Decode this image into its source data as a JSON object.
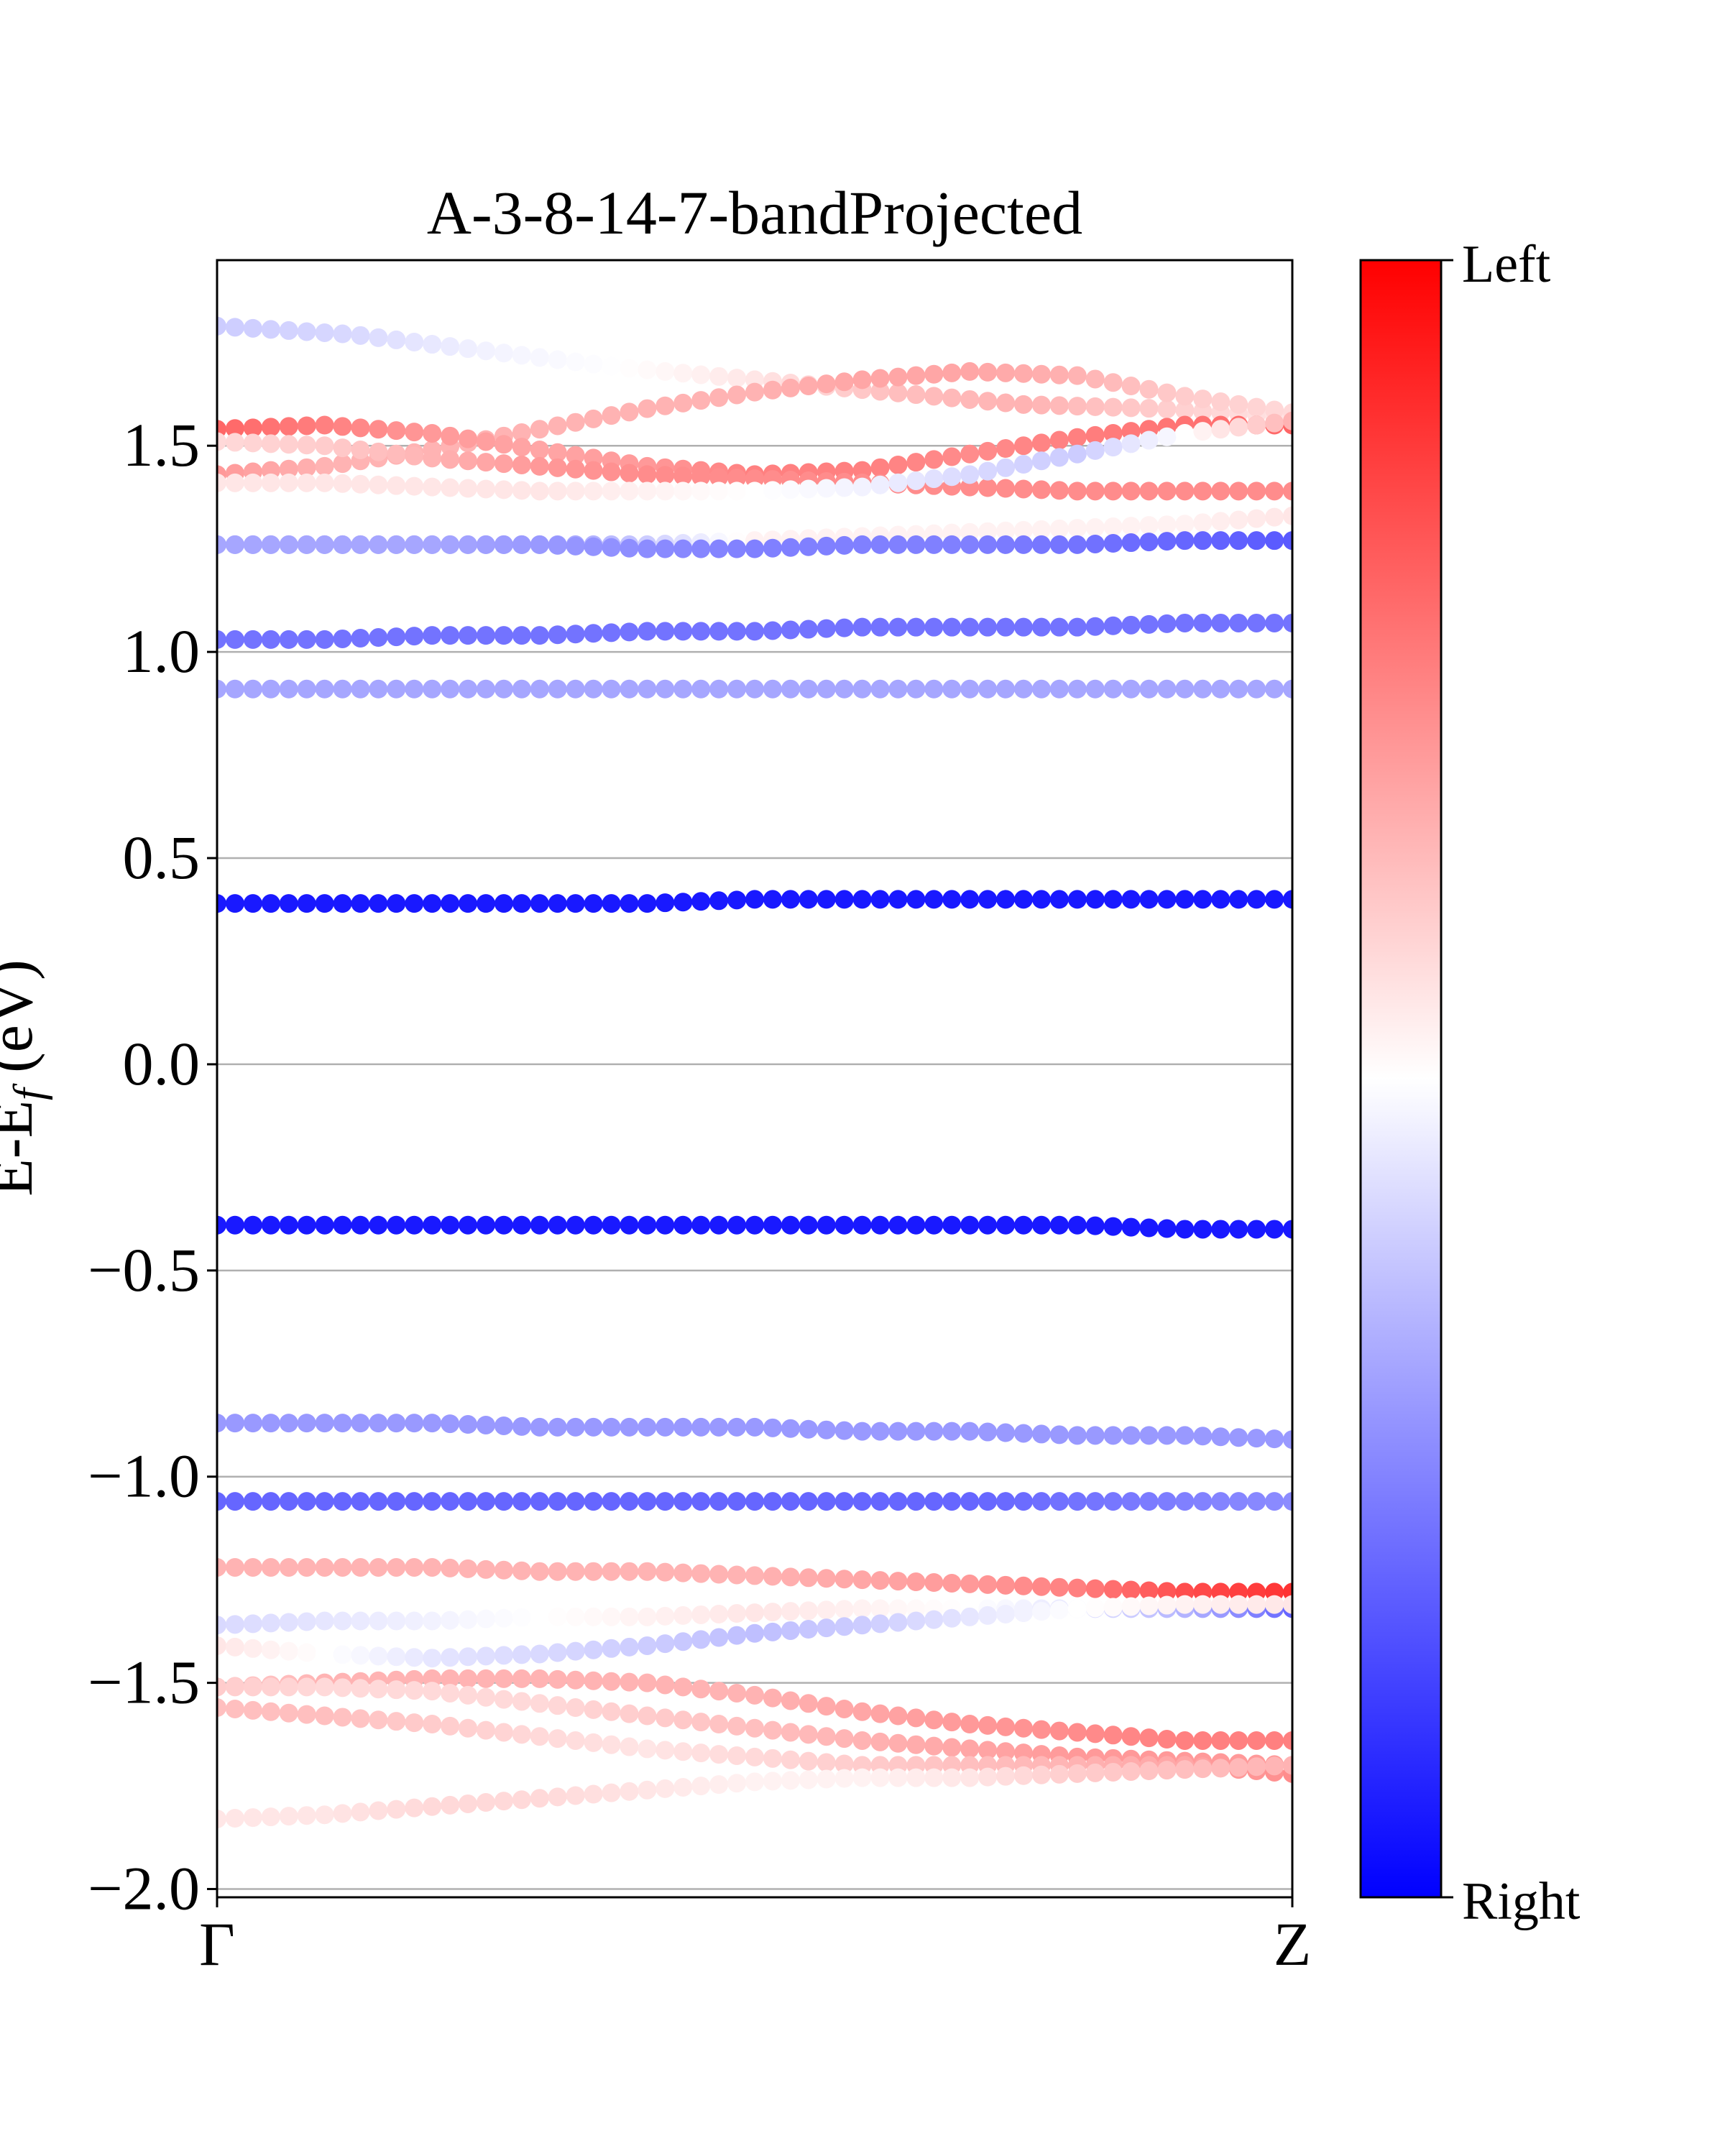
{
  "chart_data": {
    "type": "scatter",
    "title": "A-3-8-14-7-bandProjected",
    "ylabel": "E-E",
    "ylabel_sub": "f",
    "ylabel_unit": " (eV)",
    "xlim": [
      0,
      1
    ],
    "ylim": [
      -2.02,
      1.95
    ],
    "x_ticks": [
      {
        "value": 0,
        "label": "Γ"
      },
      {
        "value": 1,
        "label": "Z"
      }
    ],
    "y_ticks": [
      {
        "value": -2.0,
        "label": "−2.0"
      },
      {
        "value": -1.5,
        "label": "−1.5"
      },
      {
        "value": -1.0,
        "label": "−1.0"
      },
      {
        "value": -0.5,
        "label": "−0.5"
      },
      {
        "value": 0.0,
        "label": "0.0"
      },
      {
        "value": 0.5,
        "label": "0.5"
      },
      {
        "value": 1.0,
        "label": "1.0"
      },
      {
        "value": 1.5,
        "label": "1.5"
      }
    ],
    "grid": "horizontal",
    "colorbar": {
      "top_label": "Left",
      "bottom_label": "Right",
      "colors": [
        "#ff0000",
        "#ffffff",
        "#0000ff"
      ]
    },
    "k_points_per_band": 61,
    "projection_scale": "-1 = Right (blue), +1 = Left (red)",
    "bands": [
      {
        "energy": [
          1.79,
          1.77,
          1.73,
          1.69,
          1.66,
          1.63,
          1.6,
          1.59,
          1.57
        ],
        "projection": [
          -0.2,
          -0.15,
          -0.05,
          0.0,
          0.1,
          0.25,
          0.3,
          0.2,
          0.1
        ]
      },
      {
        "energy": [
          1.43,
          1.45,
          1.49,
          1.54,
          1.59,
          1.63,
          1.66,
          1.68,
          1.67,
          1.62,
          1.58
        ],
        "projection": [
          0.4,
          0.3,
          0.3,
          0.3,
          0.3,
          0.3,
          0.35,
          0.35,
          0.3,
          0.2,
          0.15
        ]
      },
      {
        "energy": [
          1.54,
          1.55,
          1.53,
          1.49,
          1.45,
          1.43,
          1.44,
          1.48,
          1.52,
          1.55,
          1.55
        ],
        "projection": [
          0.6,
          0.5,
          0.4,
          0.35,
          0.4,
          0.5,
          0.5,
          0.45,
          0.5,
          0.55,
          0.6
        ]
      },
      {
        "energy": [
          1.51,
          1.5,
          1.47,
          1.45,
          1.43,
          1.42,
          1.41,
          1.4,
          1.39,
          1.39,
          1.39
        ],
        "projection": [
          0.15,
          0.2,
          0.3,
          0.4,
          0.45,
          0.45,
          0.45,
          0.45,
          0.45,
          0.45,
          0.45
        ]
      },
      {
        "energy": [
          1.41,
          1.41,
          1.4,
          1.39,
          1.39,
          1.39,
          1.4,
          1.43,
          1.48,
          1.53,
          1.56
        ],
        "projection": [
          0.1,
          0.1,
          0.1,
          0.1,
          0.05,
          0.0,
          -0.05,
          -0.15,
          -0.2,
          0.0,
          0.3
        ]
      },
      {
        "energy": [
          1.26,
          1.26,
          1.26,
          1.26,
          1.26,
          1.27,
          1.28,
          1.29,
          1.3,
          1.31,
          1.33
        ],
        "projection": [
          -0.35,
          -0.35,
          -0.35,
          -0.4,
          -0.2,
          0.05,
          0.05,
          0.05,
          0.05,
          0.05,
          0.1
        ]
      },
      {
        "energy": [
          1.26,
          1.26,
          1.26,
          1.26,
          1.25,
          1.25,
          1.26,
          1.26,
          1.26,
          1.27,
          1.27
        ],
        "projection": [
          -0.35,
          -0.35,
          -0.35,
          -0.4,
          -0.45,
          -0.5,
          -0.5,
          -0.5,
          -0.55,
          -0.6,
          -0.65
        ]
      },
      {
        "energy": [
          1.03,
          1.03,
          1.04,
          1.04,
          1.05,
          1.05,
          1.06,
          1.06,
          1.06,
          1.07,
          1.07
        ],
        "projection": [
          -0.55,
          -0.55,
          -0.55,
          -0.55,
          -0.55,
          -0.55,
          -0.55,
          -0.55,
          -0.55,
          -0.55,
          -0.55
        ]
      },
      {
        "energy": [
          0.91,
          0.91,
          0.91,
          0.91,
          0.91,
          0.91,
          0.91,
          0.91,
          0.91,
          0.91,
          0.91
        ],
        "projection": [
          -0.35,
          -0.35,
          -0.35,
          -0.35,
          -0.35,
          -0.35,
          -0.35,
          -0.35,
          -0.35,
          -0.35,
          -0.35
        ]
      },
      {
        "energy": [
          0.39,
          0.39,
          0.39,
          0.39,
          0.39,
          0.4,
          0.4,
          0.4,
          0.4,
          0.4,
          0.4
        ],
        "projection": [
          -0.9,
          -0.9,
          -0.9,
          -0.9,
          -0.9,
          -0.9,
          -0.9,
          -0.9,
          -0.9,
          -0.9,
          -0.9
        ]
      },
      {
        "energy": [
          -0.39,
          -0.39,
          -0.39,
          -0.39,
          -0.39,
          -0.39,
          -0.39,
          -0.39,
          -0.39,
          -0.4,
          -0.4
        ],
        "projection": [
          -0.9,
          -0.9,
          -0.9,
          -0.9,
          -0.9,
          -0.9,
          -0.9,
          -0.9,
          -0.9,
          -0.9,
          -0.9
        ]
      },
      {
        "energy": [
          -0.87,
          -0.87,
          -0.87,
          -0.88,
          -0.88,
          -0.88,
          -0.89,
          -0.89,
          -0.9,
          -0.9,
          -0.91
        ],
        "projection": [
          -0.4,
          -0.4,
          -0.4,
          -0.4,
          -0.4,
          -0.4,
          -0.4,
          -0.4,
          -0.4,
          -0.4,
          -0.4
        ]
      },
      {
        "energy": [
          -1.06,
          -1.06,
          -1.06,
          -1.06,
          -1.06,
          -1.06,
          -1.06,
          -1.06,
          -1.06,
          -1.06,
          -1.06
        ],
        "projection": [
          -0.6,
          -0.6,
          -0.6,
          -0.6,
          -0.6,
          -0.6,
          -0.6,
          -0.6,
          -0.55,
          -0.5,
          -0.45
        ]
      },
      {
        "energy": [
          -1.22,
          -1.22,
          -1.22,
          -1.23,
          -1.23,
          -1.24,
          -1.25,
          -1.26,
          -1.27,
          -1.28,
          -1.28
        ],
        "projection": [
          0.3,
          0.3,
          0.3,
          0.3,
          0.3,
          0.3,
          0.35,
          0.4,
          0.5,
          0.7,
          0.8
        ]
      },
      {
        "energy": [
          -1.36,
          -1.35,
          -1.35,
          -1.34,
          -1.34,
          -1.33,
          -1.32,
          -1.32,
          -1.32,
          -1.32,
          -1.32
        ],
        "projection": [
          -0.15,
          -0.1,
          -0.05,
          0.0,
          0.05,
          0.1,
          0.05,
          0.0,
          -0.1,
          -0.3,
          -0.6
        ]
      },
      {
        "energy": [
          -1.41,
          -1.43,
          -1.44,
          -1.43,
          -1.41,
          -1.38,
          -1.36,
          -1.34,
          -1.32,
          -1.31,
          -1.31
        ],
        "projection": [
          0.1,
          0.0,
          -0.1,
          -0.15,
          -0.2,
          -0.25,
          -0.2,
          -0.1,
          0.0,
          0.05,
          0.1
        ]
      },
      {
        "energy": [
          -1.51,
          -1.5,
          -1.49,
          -1.49,
          -1.5,
          -1.53,
          -1.57,
          -1.6,
          -1.62,
          -1.64,
          -1.64
        ],
        "projection": [
          0.2,
          0.3,
          0.3,
          0.3,
          0.3,
          0.3,
          0.35,
          0.4,
          0.45,
          0.5,
          0.5
        ]
      },
      {
        "energy": [
          -1.51,
          -1.51,
          -1.52,
          -1.55,
          -1.58,
          -1.61,
          -1.64,
          -1.66,
          -1.68,
          -1.69,
          -1.7
        ],
        "projection": [
          0.2,
          0.15,
          0.15,
          0.15,
          0.2,
          0.25,
          0.3,
          0.35,
          0.4,
          0.4,
          0.4
        ]
      },
      {
        "energy": [
          -1.56,
          -1.58,
          -1.6,
          -1.63,
          -1.66,
          -1.68,
          -1.7,
          -1.7,
          -1.7,
          -1.7,
          -1.72
        ],
        "projection": [
          0.25,
          0.25,
          0.2,
          0.15,
          0.1,
          0.15,
          0.2,
          0.25,
          0.3,
          0.35,
          0.45
        ]
      },
      {
        "energy": [
          -1.83,
          -1.82,
          -1.8,
          -1.78,
          -1.76,
          -1.74,
          -1.73,
          -1.73,
          -1.72,
          -1.71,
          -1.7
        ],
        "projection": [
          0.1,
          0.1,
          0.15,
          0.15,
          0.1,
          0.05,
          0.05,
          0.1,
          0.2,
          0.25,
          0.3
        ]
      }
    ]
  }
}
